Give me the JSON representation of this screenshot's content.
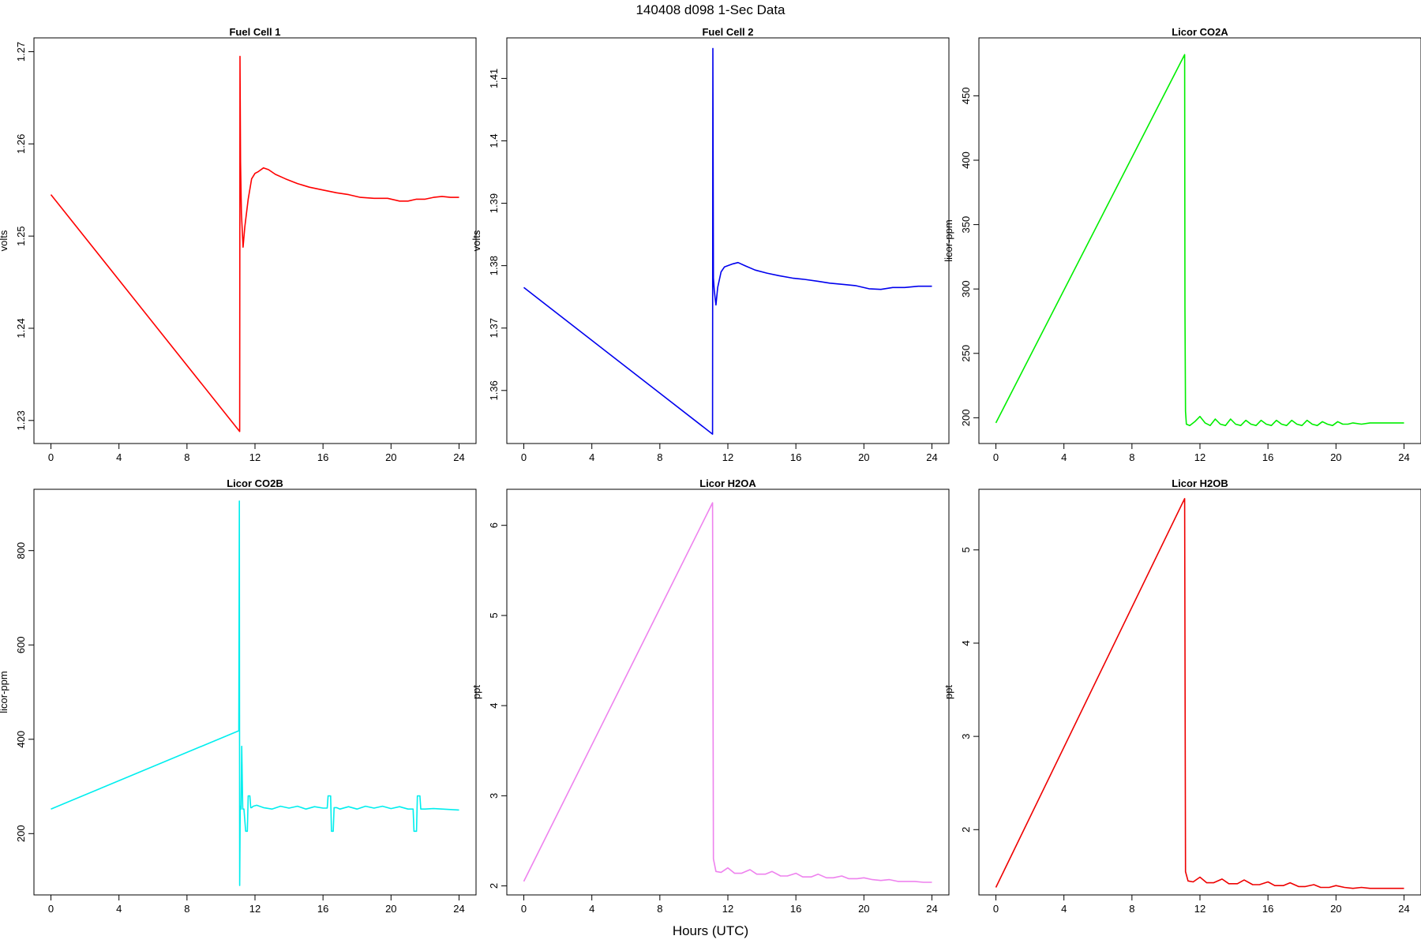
{
  "page": {
    "title": "140408   d098   1-Sec Data",
    "xlabel": "Hours (UTC)"
  },
  "chart_data": [
    {
      "type": "line",
      "title": "Fuel Cell 1",
      "ylabel": "volts",
      "color": "#ff0000",
      "xlim": [
        -1,
        25
      ],
      "ylim": [
        1.2275,
        1.2715
      ],
      "xticks": [
        0,
        4,
        8,
        12,
        16,
        20,
        24
      ],
      "yticks": [
        1.23,
        1.24,
        1.25,
        1.26,
        1.27
      ],
      "x": [
        0,
        11.1,
        11.12,
        11.15,
        11.2,
        11.3,
        11.4,
        11.6,
        11.8,
        12.0,
        12.2,
        12.5,
        12.8,
        13.2,
        13.8,
        14.5,
        15.2,
        16.0,
        16.8,
        17.5,
        18.2,
        19.0,
        19.8,
        20.5,
        21.0,
        21.5,
        22.0,
        22.5,
        23.0,
        23.5,
        24.0
      ],
      "y": [
        1.2545,
        1.2288,
        1.2695,
        1.258,
        1.2525,
        1.2488,
        1.251,
        1.254,
        1.2562,
        1.2568,
        1.257,
        1.2574,
        1.2572,
        1.2567,
        1.2562,
        1.2557,
        1.2553,
        1.255,
        1.2547,
        1.2545,
        1.2542,
        1.2541,
        1.2541,
        1.2538,
        1.2538,
        1.254,
        1.254,
        1.2542,
        1.2543,
        1.2542,
        1.2542
      ]
    },
    {
      "type": "line",
      "title": "Fuel Cell 2",
      "ylabel": "volts",
      "color": "#0000ee",
      "xlim": [
        -1,
        25
      ],
      "ylim": [
        1.3515,
        1.4165
      ],
      "xticks": [
        0,
        4,
        8,
        12,
        16,
        20,
        24
      ],
      "yticks": [
        1.36,
        1.37,
        1.38,
        1.39,
        1.4,
        1.41
      ],
      "x": [
        0,
        11.1,
        11.12,
        11.15,
        11.2,
        11.3,
        11.4,
        11.6,
        11.8,
        12.0,
        12.3,
        12.6,
        13.0,
        13.6,
        14.3,
        15.0,
        15.8,
        16.5,
        17.3,
        18.0,
        18.8,
        19.5,
        20.3,
        21.0,
        21.7,
        22.4,
        23.2,
        24.0
      ],
      "y": [
        1.3765,
        1.353,
        1.4148,
        1.378,
        1.376,
        1.3737,
        1.3765,
        1.379,
        1.3798,
        1.38,
        1.3803,
        1.3805,
        1.38,
        1.3793,
        1.3788,
        1.3784,
        1.378,
        1.3778,
        1.3775,
        1.3772,
        1.377,
        1.3768,
        1.3763,
        1.3762,
        1.3765,
        1.3765,
        1.3767,
        1.3767
      ]
    },
    {
      "type": "line",
      "title": "Licor CO2A",
      "ylabel": "licor-ppm",
      "color": "#00ee00",
      "xlim": [
        -1,
        25
      ],
      "ylim": [
        180,
        495
      ],
      "xticks": [
        0,
        4,
        8,
        12,
        16,
        20,
        24
      ],
      "yticks": [
        200,
        250,
        300,
        350,
        400,
        450
      ],
      "x": [
        0,
        11.1,
        11.12,
        11.15,
        11.2,
        11.4,
        11.7,
        12.0,
        12.3,
        12.6,
        12.9,
        13.2,
        13.5,
        13.8,
        14.1,
        14.4,
        14.7,
        15.0,
        15.3,
        15.6,
        15.9,
        16.2,
        16.5,
        16.8,
        17.1,
        17.4,
        17.7,
        18.0,
        18.3,
        18.6,
        18.9,
        19.2,
        19.5,
        19.8,
        20.1,
        20.4,
        20.7,
        21.0,
        21.5,
        22.0,
        22.5,
        23.0,
        23.5,
        24.0
      ],
      "y": [
        196,
        482,
        285,
        205,
        195,
        194,
        197,
        201,
        196,
        194,
        199,
        195,
        194,
        199,
        195,
        194,
        198,
        195,
        194,
        198,
        195,
        194,
        198,
        195,
        194,
        198,
        195,
        194,
        198,
        195,
        194,
        197,
        195,
        194,
        197,
        195,
        195,
        196,
        195,
        196,
        196,
        196,
        196,
        196
      ]
    },
    {
      "type": "line",
      "title": "Licor CO2B",
      "ylabel": "licor-ppm",
      "color": "#00eeee",
      "xlim": [
        -1,
        25
      ],
      "ylim": [
        70,
        930
      ],
      "xticks": [
        0,
        4,
        8,
        12,
        16,
        20,
        24
      ],
      "yticks": [
        200,
        400,
        600,
        800
      ],
      "x": [
        0,
        11.05,
        11.08,
        11.1,
        11.13,
        11.18,
        11.22,
        11.28,
        11.35,
        11.45,
        11.55,
        11.6,
        11.7,
        11.75,
        11.8,
        11.9,
        12.1,
        12.5,
        13.0,
        13.5,
        14.0,
        14.5,
        15.0,
        15.5,
        16.0,
        16.25,
        16.3,
        16.45,
        16.5,
        16.6,
        16.65,
        16.8,
        17.0,
        17.5,
        18.0,
        18.5,
        19.0,
        19.5,
        20.0,
        20.5,
        21.0,
        21.3,
        21.35,
        21.5,
        21.55,
        21.7,
        21.75,
        22.0,
        22.5,
        23.0,
        23.5,
        24.0
      ],
      "y": [
        252,
        418,
        905,
        90,
        258,
        252,
        385,
        252,
        252,
        205,
        205,
        280,
        280,
        255,
        255,
        258,
        260,
        255,
        252,
        258,
        254,
        258,
        252,
        257,
        254,
        254,
        280,
        280,
        205,
        205,
        255,
        255,
        252,
        257,
        252,
        258,
        254,
        258,
        253,
        257,
        252,
        252,
        205,
        205,
        280,
        280,
        252,
        252,
        253,
        252,
        251,
        250
      ]
    },
    {
      "type": "line",
      "title": "Licor H2OA",
      "ylabel": "ppt",
      "color": "#ee82ee",
      "xlim": [
        -1,
        25
      ],
      "ylim": [
        1.9,
        6.4
      ],
      "xticks": [
        0,
        4,
        8,
        12,
        16,
        20,
        24
      ],
      "yticks": [
        2,
        3,
        4,
        5,
        6
      ],
      "x": [
        0,
        11.1,
        11.15,
        11.3,
        11.6,
        12.0,
        12.4,
        12.8,
        13.3,
        13.7,
        14.2,
        14.6,
        15.1,
        15.5,
        16.0,
        16.4,
        16.9,
        17.3,
        17.8,
        18.2,
        18.7,
        19.1,
        19.6,
        20.0,
        20.5,
        21.0,
        21.5,
        22.0,
        22.5,
        23.0,
        23.5,
        24.0
      ],
      "y": [
        2.05,
        6.25,
        2.3,
        2.16,
        2.15,
        2.2,
        2.14,
        2.14,
        2.18,
        2.13,
        2.13,
        2.16,
        2.11,
        2.11,
        2.14,
        2.1,
        2.1,
        2.13,
        2.09,
        2.09,
        2.11,
        2.08,
        2.08,
        2.09,
        2.07,
        2.06,
        2.07,
        2.05,
        2.05,
        2.05,
        2.04,
        2.04
      ]
    },
    {
      "type": "line",
      "title": "Licor H2OB",
      "ylabel": "ppt",
      "color": "#ee0000",
      "xlim": [
        -1,
        25
      ],
      "ylim": [
        1.3,
        5.65
      ],
      "xticks": [
        0,
        4,
        8,
        12,
        16,
        20,
        24
      ],
      "yticks": [
        2,
        3,
        4,
        5
      ],
      "x": [
        0,
        11.1,
        11.15,
        11.3,
        11.6,
        12.0,
        12.4,
        12.8,
        13.3,
        13.7,
        14.2,
        14.6,
        15.1,
        15.5,
        16.0,
        16.4,
        16.9,
        17.3,
        17.8,
        18.2,
        18.7,
        19.1,
        19.6,
        20.0,
        20.5,
        21.0,
        21.5,
        22.0,
        22.5,
        23.0,
        23.5,
        24.0
      ],
      "y": [
        1.38,
        5.55,
        1.55,
        1.45,
        1.44,
        1.49,
        1.43,
        1.43,
        1.47,
        1.42,
        1.42,
        1.46,
        1.41,
        1.41,
        1.44,
        1.4,
        1.4,
        1.43,
        1.39,
        1.39,
        1.41,
        1.38,
        1.38,
        1.4,
        1.38,
        1.37,
        1.38,
        1.37,
        1.37,
        1.37,
        1.37,
        1.37
      ]
    }
  ]
}
